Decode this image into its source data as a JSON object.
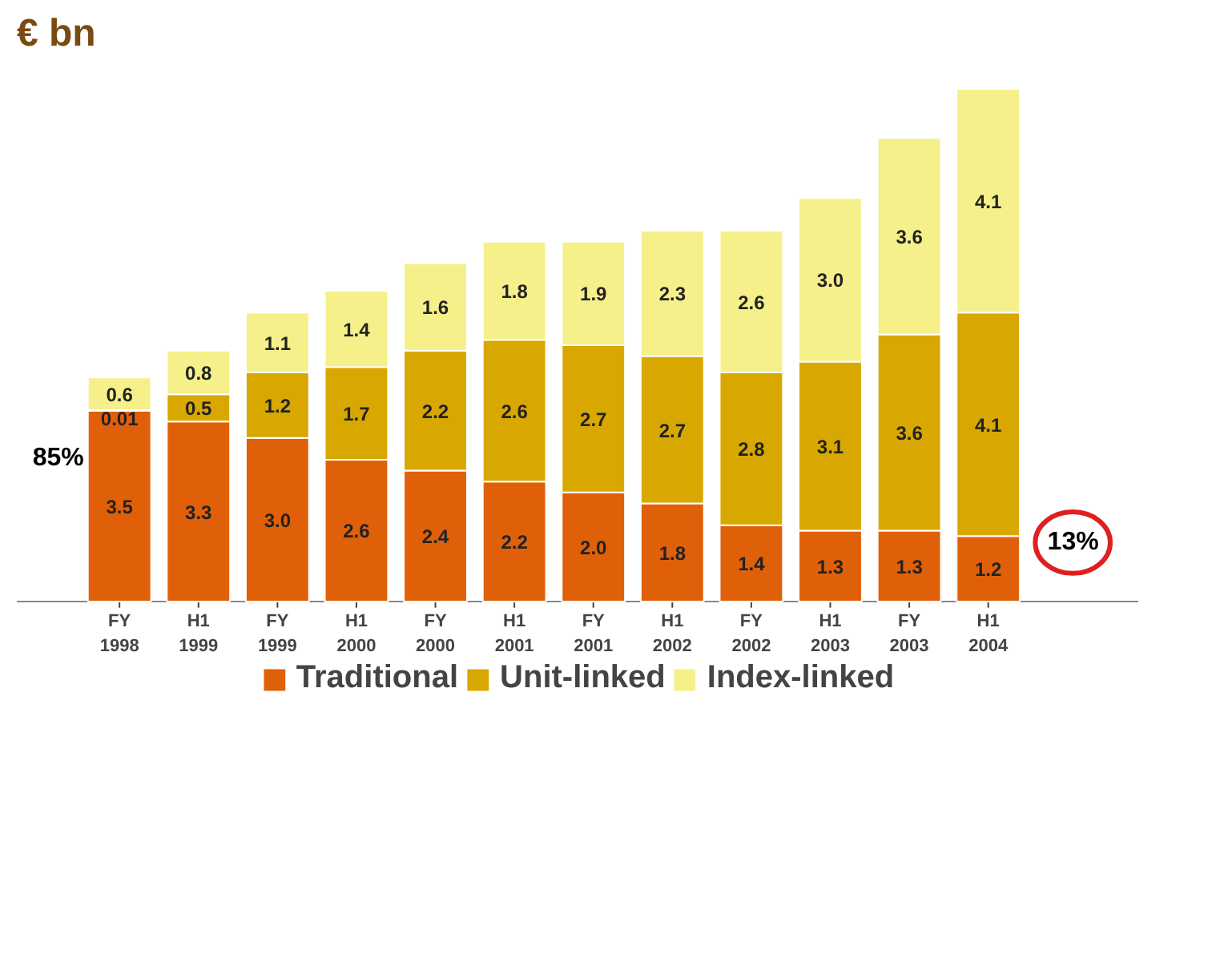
{
  "chart_data": {
    "type": "bar",
    "title": "€ bn",
    "stacked": true,
    "legend": "bottom",
    "grid": false,
    "categories": [
      "FY\n1998",
      "H1\n1999",
      "FY\n1999",
      "H1\n2000",
      "FY\n2000",
      "H1\n2001",
      "FY\n2001",
      "H1\n2002",
      "FY\n2002",
      "H1\n2003",
      "FY\n2003",
      "H1\n2004"
    ],
    "series": [
      {
        "name": "Traditional",
        "color": "#e0600a",
        "values": [
          3.5,
          3.3,
          3.0,
          2.6,
          2.4,
          2.2,
          2.0,
          1.8,
          1.4,
          1.3,
          1.3,
          1.2
        ],
        "value_labels": [
          "3.5",
          "3.3",
          "3.0",
          "2.6",
          "2.4",
          "2.2",
          "2.0",
          "1.8",
          "1.4",
          "1.3",
          "1.3",
          "1.2"
        ]
      },
      {
        "name": "Unit-linked",
        "color": "#d9a800",
        "values": [
          0.01,
          0.5,
          1.2,
          1.7,
          2.2,
          2.6,
          2.7,
          2.7,
          2.8,
          3.1,
          3.6,
          4.1
        ],
        "value_labels": [
          "0.01",
          "0.5",
          "1.2",
          "1.7",
          "2.2",
          "2.6",
          "2.7",
          "2.7",
          "2.8",
          "3.1",
          "3.6",
          "4.1"
        ]
      },
      {
        "name": "Index-linked",
        "color": "#f5f08a",
        "values": [
          0.6,
          0.8,
          1.1,
          1.4,
          1.6,
          1.8,
          1.9,
          2.3,
          2.6,
          3.0,
          3.6,
          4.1
        ],
        "value_labels": [
          "0.6",
          "0.8",
          "1.1",
          "1.4",
          "1.6",
          "1.8",
          "1.9",
          "2.3",
          "2.6",
          "3.0",
          "3.6",
          "4.1"
        ]
      }
    ],
    "annotations": [
      "85%",
      "13%"
    ]
  }
}
